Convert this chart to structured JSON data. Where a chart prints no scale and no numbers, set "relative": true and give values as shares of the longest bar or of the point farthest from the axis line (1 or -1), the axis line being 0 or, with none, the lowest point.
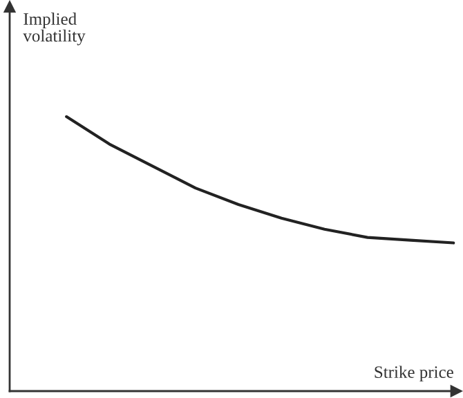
{
  "chart_data": {
    "type": "line",
    "relative": true,
    "xlabel": "Strike price",
    "ylabel": "Implied\nvolatility",
    "categories": [
      null,
      null,
      null,
      null,
      null,
      null,
      null,
      null,
      null,
      null
    ],
    "series": [
      {
        "color": "#222222",
        "values": [
          1,
          0.9,
          0.82,
          0.74,
          0.68,
          0.63,
          0.59,
          0.56,
          0.55,
          0.54
        ]
      }
    ]
  }
}
